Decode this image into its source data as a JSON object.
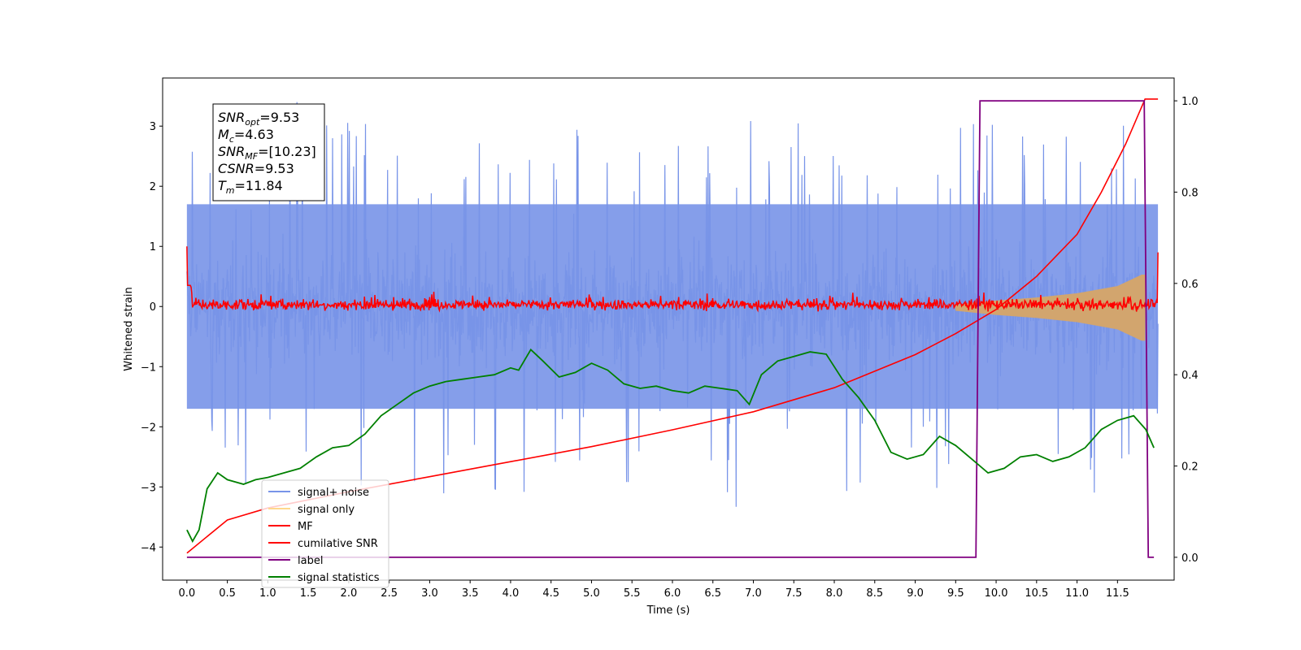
{
  "chart_data": {
    "type": "line",
    "xlabel": "Time (s)",
    "ylabel": "Whitened strain",
    "xlim": [
      -0.3,
      12.2
    ],
    "ylim": [
      -4.55,
      3.8
    ],
    "ylim_right": [
      -0.05,
      1.05
    ],
    "x_ticks": [
      "0.0",
      "0.5",
      "1.0",
      "1.5",
      "2.0",
      "2.5",
      "3.0",
      "3.5",
      "4.0",
      "4.5",
      "5.0",
      "5.5",
      "6.0",
      "6.5",
      "7.0",
      "7.5",
      "8.0",
      "8.5",
      "9.0",
      "9.5",
      "10.0",
      "10.5",
      "11.0",
      "11.5"
    ],
    "y_ticks": [
      "3",
      "2",
      "1",
      "0",
      "−1",
      "−2",
      "−3",
      "−4"
    ],
    "y_ticks_right": [
      "1.0",
      "0.8",
      "0.6",
      "0.4",
      "0.2",
      "0.0"
    ],
    "grid": false,
    "legend_position": "lower-left",
    "info_box": {
      "lines": [
        {
          "symbol": "SNR",
          "sub": "opt",
          "value": "=9.53"
        },
        {
          "symbol": "M",
          "sub": "c",
          "value": "=4.63"
        },
        {
          "symbol": "SNR",
          "sub": "MF",
          "value": "=[10.23]"
        },
        {
          "symbol": "CSNR",
          "sub": "",
          "value": "=9.53"
        },
        {
          "symbol": "T",
          "sub": "m",
          "value": "=11.84"
        }
      ]
    },
    "series": [
      {
        "name": "signal+ noise",
        "color": "#7894e8",
        "axis": "left",
        "description": "dense noise trace",
        "x": [
          0.0,
          12.0
        ],
        "band": [
          -1.7,
          1.7
        ],
        "extremes": [
          -4.1,
          3.4
        ]
      },
      {
        "name": "signal only",
        "color": "#d2a56e",
        "axis": "left",
        "chirp": {
          "start": 9.5,
          "end": 11.84,
          "amplitude": [
            [
              9.5,
              0.05
            ],
            [
              10.0,
              0.12
            ],
            [
              10.5,
              0.17
            ],
            [
              11.0,
              0.24
            ],
            [
              11.5,
              0.36
            ],
            [
              11.8,
              0.55
            ]
          ]
        }
      },
      {
        "name": "MF",
        "color": "#ff0000",
        "axis": "left",
        "description": "matched-filter output, noise around zero",
        "x": [
          0.0,
          12.0
        ],
        "band": [
          -0.12,
          0.18
        ],
        "edges": {
          "start": 1.0,
          "end": 0.9
        }
      },
      {
        "name": "cumilative SNR",
        "color": "#ff0000",
        "axis": "left",
        "x": [
          0.0,
          0.5,
          1.0,
          2.0,
          3.0,
          4.0,
          5.0,
          6.0,
          7.0,
          8.0,
          9.0,
          9.5,
          10.0,
          10.5,
          11.0,
          11.3,
          11.6,
          11.84,
          11.85,
          12.0
        ],
        "y": [
          -4.1,
          -3.55,
          -3.35,
          -3.08,
          -2.83,
          -2.58,
          -2.33,
          -2.05,
          -1.75,
          -1.35,
          -0.8,
          -0.45,
          -0.05,
          0.5,
          1.2,
          1.9,
          2.7,
          3.45,
          3.45,
          3.45
        ]
      },
      {
        "name": "label",
        "color": "#800080",
        "axis": "right",
        "x": [
          0.0,
          9.75,
          9.8,
          11.83,
          11.88,
          11.95
        ],
        "y": [
          0.0,
          0.0,
          1.0,
          1.0,
          0.0,
          0.0
        ]
      },
      {
        "name": "signal statistics",
        "color": "#008000",
        "axis": "right",
        "x": [
          0.0,
          0.07,
          0.15,
          0.25,
          0.38,
          0.5,
          0.7,
          0.85,
          1.0,
          1.2,
          1.4,
          1.6,
          1.8,
          2.0,
          2.2,
          2.4,
          2.6,
          2.8,
          3.0,
          3.2,
          3.4,
          3.6,
          3.8,
          4.0,
          4.1,
          4.25,
          4.4,
          4.6,
          4.8,
          5.0,
          5.2,
          5.4,
          5.6,
          5.8,
          6.0,
          6.2,
          6.4,
          6.6,
          6.8,
          6.95,
          7.1,
          7.3,
          7.5,
          7.7,
          7.9,
          8.1,
          8.3,
          8.5,
          8.7,
          8.9,
          9.1,
          9.3,
          9.5,
          9.7,
          9.9,
          10.1,
          10.3,
          10.5,
          10.7,
          10.9,
          11.1,
          11.3,
          11.5,
          11.7,
          11.85,
          11.95
        ],
        "y": [
          0.06,
          0.035,
          0.06,
          0.15,
          0.185,
          0.17,
          0.16,
          0.17,
          0.175,
          0.185,
          0.195,
          0.22,
          0.24,
          0.245,
          0.27,
          0.31,
          0.335,
          0.36,
          0.375,
          0.385,
          0.39,
          0.395,
          0.4,
          0.415,
          0.41,
          0.455,
          0.43,
          0.395,
          0.405,
          0.425,
          0.41,
          0.38,
          0.37,
          0.375,
          0.365,
          0.36,
          0.375,
          0.37,
          0.365,
          0.335,
          0.4,
          0.43,
          0.44,
          0.45,
          0.445,
          0.39,
          0.35,
          0.3,
          0.23,
          0.215,
          0.225,
          0.265,
          0.245,
          0.215,
          0.185,
          0.195,
          0.22,
          0.225,
          0.21,
          0.22,
          0.24,
          0.28,
          0.3,
          0.31,
          0.28,
          0.24
        ]
      }
    ],
    "legend": [
      {
        "label": "signal+ noise",
        "color": "#7894e8"
      },
      {
        "label": "signal only",
        "color": "#ffd88c"
      },
      {
        "label": "MF",
        "color": "#ff0000"
      },
      {
        "label": "cumilative SNR",
        "color": "#ff0000"
      },
      {
        "label": "label",
        "color": "#800080"
      },
      {
        "label": "signal statistics",
        "color": "#008000"
      }
    ]
  }
}
